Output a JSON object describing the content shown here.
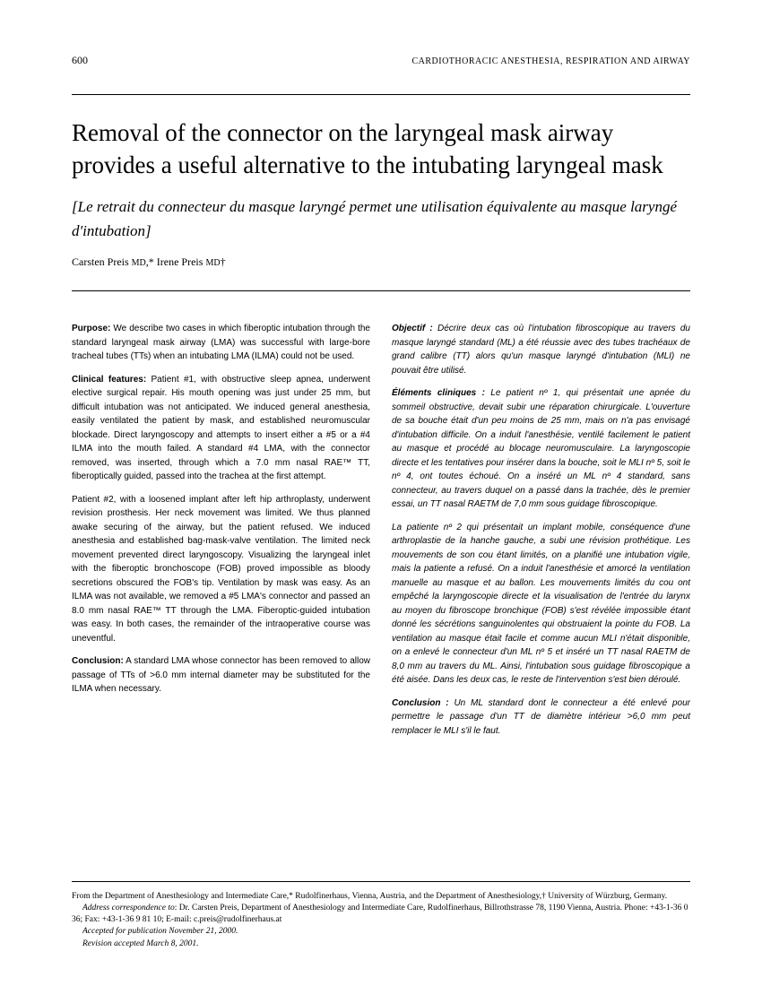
{
  "page_number": "600",
  "running_head": "CARDIOTHORACIC ANESTHESIA, RESPIRATION AND AIRWAY",
  "title": "Removal of the connector on the laryngeal mask airway provides a useful alternative to the intubating laryngeal mask",
  "subtitle": "[Le retrait du connecteur du masque laryngé permet une utilisation équivalente au masque laryngé d'intubation]",
  "authors_html": "Carsten Preis MD,* Irene Preis MD†",
  "author1_name": "Carsten Preis ",
  "author1_deg": "MD",
  "author1_mark": ",* ",
  "author2_name": "Irene Preis ",
  "author2_deg": "MD",
  "author2_mark": "†",
  "abstract_en": {
    "purpose_label": "Purpose:",
    "purpose": " We describe two cases in which fiberoptic intubation through the standard laryngeal mask airway (LMA) was successful with large-bore tracheal tubes (TTs) when an intubating LMA (ILMA) could not be used.",
    "clinical_label": "Clinical features:",
    "clinical": " Patient #1, with obstructive sleep apnea, underwent elective surgical repair. His mouth opening was just under 25 mm, but difficult intubation was not anticipated. We induced general anesthesia, easily ventilated the patient by mask, and established neuromuscular blockade. Direct laryngoscopy and attempts to insert either a #5 or a #4 ILMA into the mouth failed. A standard #4 LMA, with the connector removed, was inserted, through which a 7.0 mm nasal RAE™ TT, fiberoptically guided, passed into the trachea at the first attempt.",
    "clinical2": "Patient #2, with a loosened implant after left hip arthroplasty, underwent revision prosthesis. Her neck movement was limited. We thus planned awake securing of the airway, but the patient refused. We induced anesthesia and established bag-mask-valve ventilation. The limited neck movement prevented direct laryngoscopy. Visualizing the laryngeal inlet with the fiberoptic bronchoscope (FOB) proved impossible as bloody secretions obscured the FOB's tip. Ventilation by mask was easy. As an ILMA was not available, we removed a #5 LMA's connector and passed an 8.0 mm nasal RAE™ TT through the LMA. Fiberoptic-guided intubation was easy. In both cases, the remainder of the intraoperative course was uneventful.",
    "conclusion_label": "Conclusion:",
    "conclusion": " A standard LMA whose connector has been removed to allow passage of TTs of >6.0 mm internal diameter may be substituted for the ILMA when necessary."
  },
  "abstract_fr": {
    "objectif_label": "Objectif :",
    "objectif": " Décrire deux cas où l'intubation fibroscopique au travers du masque laryngé standard (ML) a été réussie avec des tubes trachéaux de grand calibre (TT) alors qu'un masque laryngé d'intubation (MLI) ne pouvait être utilisé.",
    "elements_label": "Éléments cliniques :",
    "elements": " Le patient nº 1, qui présentait une apnée du sommeil obstructive, devait subir une réparation chirurgicale. L'ouverture de sa bouche était d'un peu moins de 25 mm, mais on n'a pas envisagé d'intubation difficile. On a induit l'anesthésie, ventilé facilement le patient au masque et procédé au blocage neuromusculaire. La laryngoscopie directe et les tentatives pour insérer dans la bouche, soit le MLI nº 5, soit le nº 4, ont toutes échoué. On a inséré un ML nº 4 standard, sans connecteur, au travers duquel on a passé dans la trachée, dès le premier essai, un TT nasal RAETM de 7,0 mm sous guidage fibroscopique.",
    "elements2": "La patiente nº 2 qui présentait un implant mobile, conséquence d'une arthroplastie de la hanche gauche, a subi une révision prothétique. Les mouvements de son cou étant limités, on a planifié une intubation vigile, mais la patiente a refusé. On a induit l'anesthésie et amorcé la ventilation manuelle au masque et au ballon. Les mouvements limités du cou ont empêché la laryngoscopie directe et la visualisation de l'entrée du larynx au moyen du fibroscope bronchique (FOB) s'est révélée impossible étant donné les sécrétions sanguinolentes qui obstruaient la pointe du FOB. La ventilation au masque était facile et comme aucun MLI n'était disponible, on a enlevé le connecteur d'un ML nº 5 et inséré un TT nasal RAETM de 8,0 mm au travers du ML. Ainsi, l'intubation sous guidage fibroscopique a été aisée. Dans les deux cas, le reste de l'intervention s'est bien déroulé.",
    "conclusion_label": "Conclusion :",
    "conclusion": " Un ML standard dont le connecteur a été enlevé pour permettre le passage d'un TT de diamètre intérieur >6,0 mm peut remplacer le MLI s'il le faut."
  },
  "footer": {
    "affil": "From the Department of Anesthesiology and Intermediate Care,* Rudolfinerhaus, Vienna, Austria, and the Department of Anesthesiology,† University of Würzburg, Germany.",
    "corr_label": "Address correspondence to",
    "corr": ": Dr. Carsten Preis, Department of Anesthesiology and Intermediate Care, Rudolfinerhaus, Billrothstrasse 78, 1190 Vienna, Austria. Phone: +43-1-36 0 36; Fax: +43-1-36 9 81 10; E-mail: c.preis@rudolfinerhaus.at",
    "accepted_label": "Accepted for publication November 21, 2000.",
    "revision_label": "Revision accepted March 8, 2001."
  }
}
